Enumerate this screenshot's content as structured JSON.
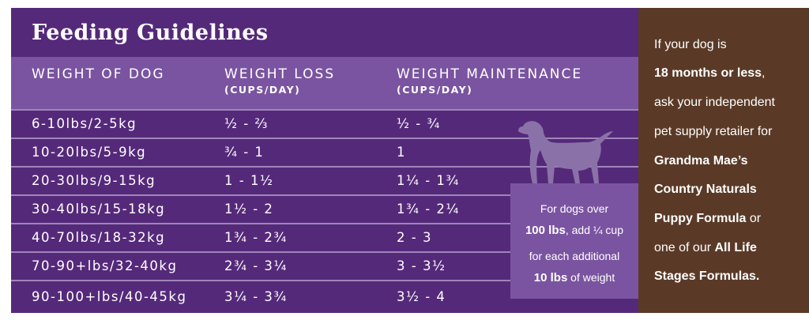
{
  "title": "Feeding Guidelines",
  "headers": {
    "weight": "WEIGHT OF DOG",
    "loss": "WEIGHT LOSS",
    "loss_unit": "(CUPS/DAY)",
    "maint": "WEIGHT MAINTENANCE",
    "maint_unit": "(CUPS/DAY)"
  },
  "rows": [
    {
      "weight": "6-10lbs/2-5kg",
      "loss": "½ - ⅔",
      "maint": "½ - ¾"
    },
    {
      "weight": "10-20lbs/5-9kg",
      "loss": "¾ - 1",
      "maint": "1"
    },
    {
      "weight": "20-30lbs/9-15kg",
      "loss": "1 - 1½",
      "maint": "1¼ - 1¾"
    },
    {
      "weight": "30-40lbs/15-18kg",
      "loss": "1½ - 2",
      "maint": "1¾ - 2¼"
    },
    {
      "weight": "40-70lbs/18-32kg",
      "loss": "1¾ - 2¾",
      "maint": "2 - 3"
    },
    {
      "weight": "70-90+lbs/32-40kg",
      "loss": "2¾ - 3¼",
      "maint": "3 - 3½"
    },
    {
      "weight": "90-100+lbs/40-45kg",
      "loss": "3¼ - 3¾",
      "maint": "3½ - 4"
    }
  ],
  "note": {
    "l1": "For dogs over",
    "l2_bold": "100 lbs",
    "l2_rest": ", add ¼ cup",
    "l3": "for each additional",
    "l4_bold": "10 lbs",
    "l4_rest": " of weight"
  },
  "side": {
    "l1": "If your dog is",
    "l2_bold": "18 months or less",
    "l2_rest": ",",
    "l3": "ask your independent",
    "l4": "pet supply retailer for",
    "l5_bold": "Grandma Mae’s",
    "l6_bold": "Country Naturals",
    "l7_bold": "Puppy Formula",
    "l7_rest": " or",
    "l8_pre": "one of our ",
    "l8_bold": "All Life",
    "l9_bold": "Stages Formulas."
  },
  "colors": {
    "panel": "#55297a",
    "header": "#7a54a0",
    "side": "#5a3a27",
    "dog": "#8a72a8"
  },
  "icons": {
    "dog": "dog-silhouette-icon"
  }
}
